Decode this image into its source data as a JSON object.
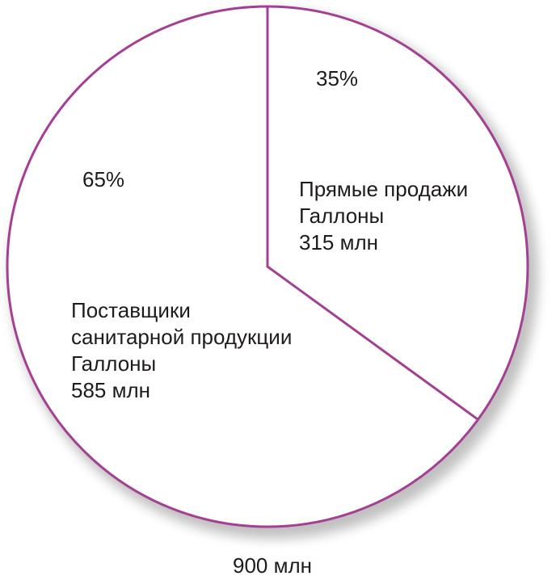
{
  "chart_data": {
    "type": "pie",
    "title": "",
    "legend_position": "none",
    "total_value": 900,
    "total_label": "900 млн",
    "start_angle_deg": 0,
    "direction": "clockwise",
    "slices": [
      {
        "name": "Прямые продажи",
        "percent": 35,
        "percent_label": "35%",
        "value": 315,
        "line1": "Прямые продажи",
        "line2": "Галлоны",
        "line3": "315 млн"
      },
      {
        "name": "Поставщики санитарной продукции",
        "percent": 65,
        "percent_label": "65%",
        "value": 585,
        "line1": "Поставщики",
        "line2": "санитарной продукции",
        "line3": "Галлоны",
        "line4": "585 млн"
      }
    ],
    "style": {
      "stroke_color": "#A53F93",
      "fill_color": "#FFFFFF",
      "text_color": "#1F1B1B",
      "shadow_color": "#8E8E8E"
    }
  }
}
